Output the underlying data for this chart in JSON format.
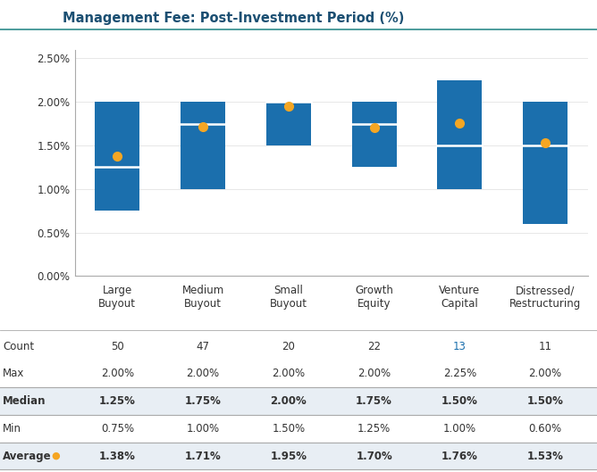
{
  "title": "Management Fee: Post-Investment Period (%)",
  "categories": [
    "Large\nBuyout",
    "Medium\nBuyout",
    "Small\nBuyout",
    "Growth\nEquity",
    "Venture\nCapital",
    "Distressed/\nRestructuring"
  ],
  "bar_min": [
    0.0075,
    0.01,
    0.015,
    0.0125,
    0.01,
    0.006
  ],
  "bar_max": [
    0.02,
    0.02,
    0.02,
    0.02,
    0.0225,
    0.02
  ],
  "median": [
    0.0125,
    0.0175,
    0.02,
    0.0175,
    0.015,
    0.015
  ],
  "average": [
    0.0138,
    0.0171,
    0.0195,
    0.017,
    0.0176,
    0.0153
  ],
  "count": [
    50,
    47,
    20,
    22,
    13,
    11
  ],
  "max_vals": [
    "2.00%",
    "2.00%",
    "2.00%",
    "2.00%",
    "2.25%",
    "2.00%"
  ],
  "median_vals": [
    "1.25%",
    "1.75%",
    "2.00%",
    "1.75%",
    "1.50%",
    "1.50%"
  ],
  "min_vals": [
    "0.75%",
    "1.00%",
    "1.50%",
    "1.25%",
    "1.00%",
    "0.60%"
  ],
  "average_vals": [
    "1.38%",
    "1.71%",
    "1.95%",
    "1.70%",
    "1.76%",
    "1.53%"
  ],
  "bar_color": "#1B6FAD",
  "median_line_color": "#FFFFFF",
  "average_dot_color": "#F5A623",
  "title_color": "#1B4F72",
  "text_color": "#333333",
  "background_color": "#FFFFFF",
  "shade_color": "#E8EEF4",
  "grid_color": "#DDDDDD",
  "spine_color": "#AAAAAA",
  "ylim": [
    0.0,
    0.026
  ],
  "yticks": [
    0.0,
    0.005,
    0.01,
    0.015,
    0.02,
    0.025
  ],
  "ytick_labels": [
    "0.00%",
    "0.50%",
    "1.00%",
    "1.50%",
    "2.00%",
    "2.50%"
  ],
  "vc_count_color": "#1B6FAD",
  "row_labels": [
    "Count",
    "Max",
    "Median",
    "Min",
    "Average"
  ],
  "bold_rows": [
    2,
    4
  ],
  "shaded_rows": [
    2,
    4
  ]
}
